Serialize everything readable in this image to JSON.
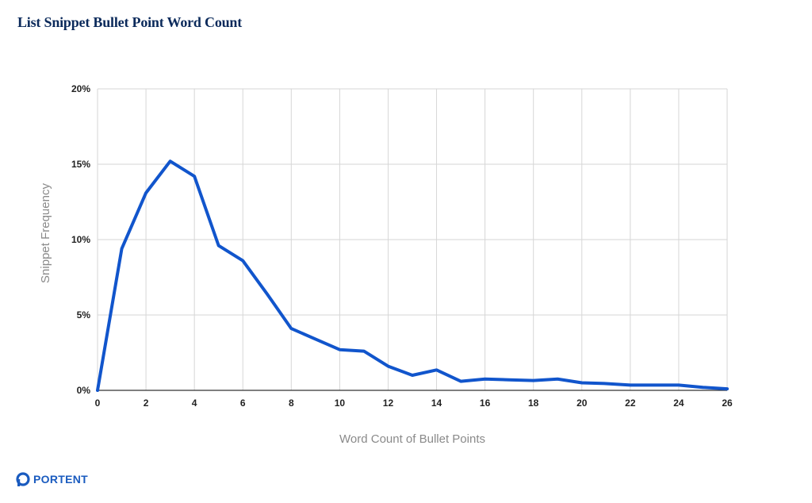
{
  "title": "List Snippet Bullet Point Word Count",
  "brand": {
    "name": "PORTENT",
    "color": "#1a5bbf"
  },
  "colors": {
    "line": "#1155cc",
    "grid": "#d6d6d6",
    "axis": "#333333",
    "tick_text": "#222222",
    "axis_label_text": "#8a8a8a",
    "title": "#0b2a5b"
  },
  "chart_data": {
    "type": "line",
    "title": "List Snippet Bullet Point Word Count",
    "xlabel": "Word Count of Bullet Points",
    "ylabel": "Snippet Frequency",
    "xlim": [
      0,
      26
    ],
    "ylim": [
      0,
      20
    ],
    "x_ticks": [
      0,
      2,
      4,
      6,
      8,
      10,
      12,
      14,
      16,
      18,
      20,
      22,
      24,
      26
    ],
    "y_ticks": [
      0,
      5,
      10,
      15,
      20
    ],
    "y_tick_labels": [
      "0%",
      "5%",
      "10%",
      "15%",
      "20%"
    ],
    "grid": true,
    "series": [
      {
        "x": [
          0,
          1,
          2,
          3,
          4,
          5,
          6,
          7,
          8,
          9,
          10,
          11,
          12,
          13,
          14,
          15,
          16,
          17,
          18,
          19,
          20,
          21,
          22,
          23,
          24,
          25,
          26
        ],
        "values": [
          0,
          9.4,
          13.1,
          15.2,
          14.2,
          9.6,
          8.6,
          6.4,
          4.1,
          3.4,
          2.7,
          2.6,
          1.6,
          1.0,
          1.35,
          0.6,
          0.75,
          0.7,
          0.65,
          0.75,
          0.5,
          0.45,
          0.35,
          0.35,
          0.35,
          0.2,
          0.1
        ]
      }
    ]
  }
}
